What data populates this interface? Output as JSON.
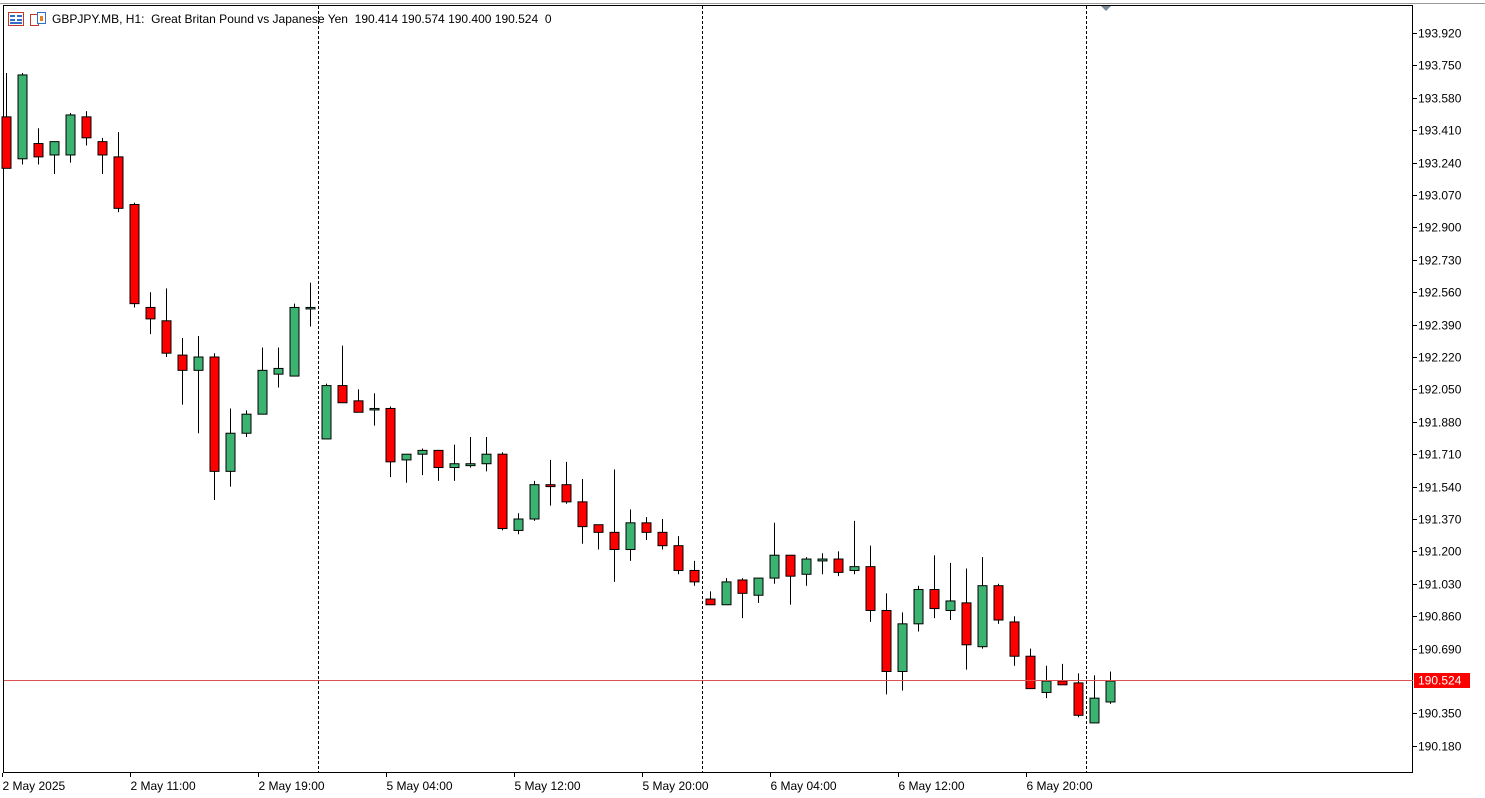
{
  "header": {
    "symbol": "GBPJPY.MB, H1:",
    "description": "Great Britan Pound vs Japanese Yen",
    "ohlc": "190.414 190.574 190.400 190.524",
    "volume": "0"
  },
  "colors": {
    "bull": "#3cb371",
    "bear": "#ff0000",
    "wick": "#000000",
    "bid_line": "#e05050",
    "bid_label_bg": "#ff0000",
    "bid_label_text": "#ffffff",
    "separator": "#000000"
  },
  "icons": [
    "chart-list-icon",
    "symbol-window-icon",
    "scroll-marker-icon"
  ],
  "chart_data": {
    "type": "candlestick",
    "symbol": "GBPJPY.MB",
    "timeframe": "H1",
    "current_price": 190.524,
    "current_price_label": "190.524",
    "y_ticks": [
      "193.920",
      "193.750",
      "193.580",
      "193.410",
      "193.240",
      "193.070",
      "192.900",
      "192.730",
      "192.560",
      "192.390",
      "192.220",
      "192.050",
      "191.880",
      "191.710",
      "191.540",
      "191.370",
      "191.200",
      "191.030",
      "190.860",
      "190.690",
      "190.350",
      "190.180"
    ],
    "x_ticks": [
      {
        "label": "2 May 2025",
        "bar": 0
      },
      {
        "label": "2 May 11:00",
        "bar": 8
      },
      {
        "label": "2 May 19:00",
        "bar": 16
      },
      {
        "label": "5 May 04:00",
        "bar": 24
      },
      {
        "label": "5 May 12:00",
        "bar": 32
      },
      {
        "label": "5 May 20:00",
        "bar": 40
      },
      {
        "label": "6 May 04:00",
        "bar": 48
      },
      {
        "label": "6 May 12:00",
        "bar": 56
      },
      {
        "label": "6 May 20:00",
        "bar": 64
      }
    ],
    "day_separators": [
      19.5,
      43.5,
      67.5
    ],
    "candles": [
      [
        193.48,
        193.71,
        193.21,
        193.21
      ],
      [
        193.26,
        193.71,
        193.23,
        193.7
      ],
      [
        193.34,
        193.42,
        193.23,
        193.27
      ],
      [
        193.28,
        193.35,
        193.18,
        193.35
      ],
      [
        193.28,
        193.5,
        193.24,
        193.49
      ],
      [
        193.48,
        193.51,
        193.33,
        193.37
      ],
      [
        193.35,
        193.37,
        193.18,
        193.28
      ],
      [
        193.27,
        193.4,
        192.98,
        193.0
      ],
      [
        193.02,
        193.03,
        192.48,
        192.5
      ],
      [
        192.48,
        192.56,
        192.34,
        192.42
      ],
      [
        192.41,
        192.58,
        192.22,
        192.24
      ],
      [
        192.23,
        192.32,
        191.97,
        192.15
      ],
      [
        192.15,
        192.33,
        191.82,
        192.22
      ],
      [
        192.22,
        192.24,
        191.47,
        191.62
      ],
      [
        191.62,
        191.95,
        191.54,
        191.82
      ],
      [
        191.82,
        191.94,
        191.8,
        191.92
      ],
      [
        191.92,
        192.27,
        191.92,
        192.15
      ],
      [
        192.13,
        192.27,
        192.06,
        192.16
      ],
      [
        192.12,
        192.5,
        192.12,
        192.48
      ],
      [
        192.48,
        192.61,
        192.38,
        192.48
      ],
      [
        191.79,
        192.08,
        191.79,
        192.07
      ],
      [
        192.07,
        192.28,
        191.98,
        191.98
      ],
      [
        191.99,
        192.05,
        191.93,
        191.93
      ],
      [
        191.95,
        192.03,
        191.86,
        191.95
      ],
      [
        191.95,
        191.96,
        191.59,
        191.67
      ],
      [
        191.68,
        191.71,
        191.56,
        191.71
      ],
      [
        191.71,
        191.74,
        191.6,
        191.73
      ],
      [
        191.73,
        191.73,
        191.57,
        191.64
      ],
      [
        191.64,
        191.76,
        191.57,
        191.66
      ],
      [
        191.65,
        191.8,
        191.64,
        191.66
      ],
      [
        191.66,
        191.8,
        191.62,
        191.71
      ],
      [
        191.71,
        191.72,
        191.31,
        191.32
      ],
      [
        191.31,
        191.4,
        191.29,
        191.37
      ],
      [
        191.37,
        191.57,
        191.36,
        191.55
      ],
      [
        191.55,
        191.68,
        191.44,
        191.54
      ],
      [
        191.55,
        191.67,
        191.45,
        191.46
      ],
      [
        191.46,
        191.58,
        191.24,
        191.33
      ],
      [
        191.34,
        191.34,
        191.21,
        191.3
      ],
      [
        191.3,
        191.63,
        191.04,
        191.21
      ],
      [
        191.21,
        191.42,
        191.15,
        191.35
      ],
      [
        191.35,
        191.38,
        191.26,
        191.3
      ],
      [
        191.3,
        191.37,
        191.21,
        191.23
      ],
      [
        191.23,
        191.28,
        191.08,
        191.1
      ],
      [
        191.1,
        191.15,
        191.02,
        191.04
      ],
      [
        190.95,
        190.99,
        190.92,
        190.92
      ],
      [
        190.92,
        191.06,
        190.92,
        191.04
      ],
      [
        191.05,
        191.06,
        190.85,
        190.98
      ],
      [
        190.97,
        191.06,
        190.93,
        191.06
      ],
      [
        191.06,
        191.35,
        191.03,
        191.18
      ],
      [
        191.18,
        191.18,
        190.92,
        191.07
      ],
      [
        191.08,
        191.17,
        191.02,
        191.16
      ],
      [
        191.15,
        191.19,
        191.08,
        191.16
      ],
      [
        191.16,
        191.2,
        191.07,
        191.09
      ],
      [
        191.1,
        191.36,
        191.08,
        191.12
      ],
      [
        191.12,
        191.23,
        190.83,
        190.89
      ],
      [
        190.89,
        190.98,
        190.45,
        190.57
      ],
      [
        190.57,
        190.88,
        190.47,
        190.82
      ],
      [
        190.82,
        191.02,
        190.78,
        191.0
      ],
      [
        191.0,
        191.18,
        190.85,
        190.9
      ],
      [
        190.89,
        191.14,
        190.84,
        190.94
      ],
      [
        190.93,
        191.11,
        190.58,
        190.71
      ],
      [
        190.7,
        191.17,
        190.69,
        191.02
      ],
      [
        191.02,
        191.03,
        190.82,
        190.84
      ],
      [
        190.83,
        190.86,
        190.6,
        190.65
      ],
      [
        190.65,
        190.69,
        190.48,
        190.48
      ],
      [
        190.46,
        190.6,
        190.43,
        190.52
      ],
      [
        190.52,
        190.61,
        190.5,
        190.5
      ],
      [
        190.51,
        190.56,
        190.33,
        190.34
      ],
      [
        190.3,
        190.55,
        190.3,
        190.43
      ],
      [
        190.41,
        190.57,
        190.4,
        190.52
      ]
    ]
  }
}
